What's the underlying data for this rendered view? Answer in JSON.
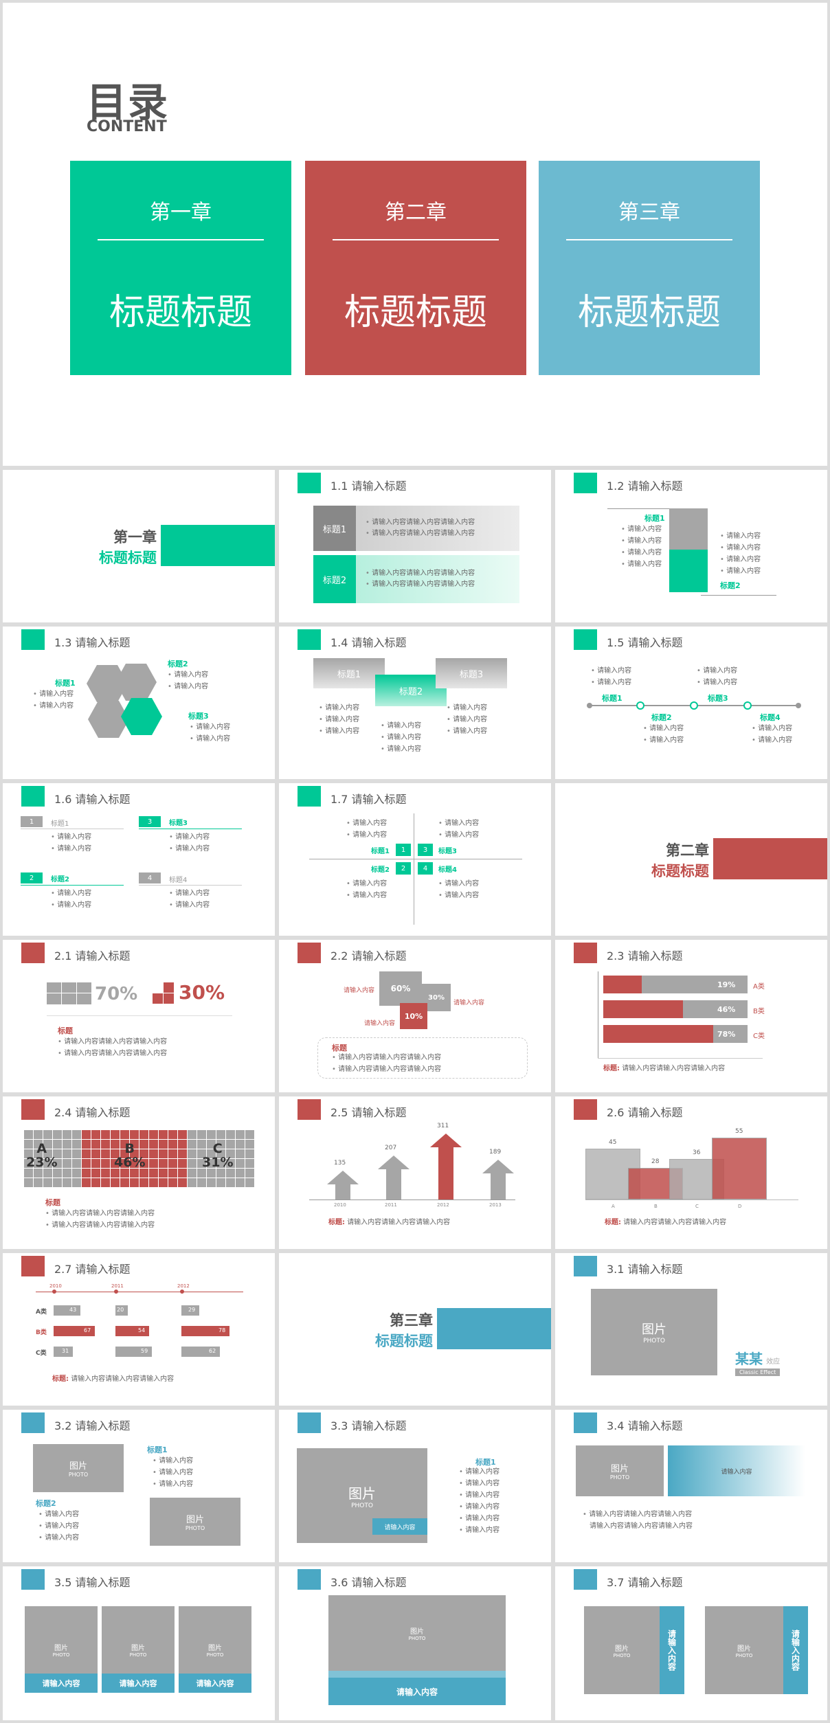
{
  "cover": {
    "title": "目录",
    "subtitle": "CONTENT",
    "chapters": [
      {
        "ch": "第一章",
        "t": "标题标题"
      },
      {
        "ch": "第二章",
        "t": "标题标题"
      },
      {
        "ch": "第三章",
        "t": "标题标题"
      }
    ]
  },
  "colors": {
    "green": "#00c896",
    "red": "#c0504d",
    "blue": "#4aa8c4",
    "gray": "#a6a6a6"
  },
  "common": {
    "input": "请输入内容",
    "input_long": "请输入内容请输入内容请输入内容",
    "biaoti": "标题",
    "biaoti_colon": "标题:",
    "pic": "图片",
    "photo": "PHOTO"
  },
  "sec1": {
    "chapter": "第一章",
    "title": "标题标题"
  },
  "sec2": {
    "chapter": "第二章",
    "title": "标题标题"
  },
  "sec3": {
    "chapter": "第三章",
    "title": "标题标题"
  },
  "s11": {
    "title": "1.1 请输入标题",
    "l1": "标题1",
    "l2": "标题2"
  },
  "s12": {
    "title": "1.2 请输入标题",
    "l1": "标题1",
    "l2": "标题2"
  },
  "s13": {
    "title": "1.3 请输入标题",
    "l1": "标题1",
    "l2": "标题2",
    "l3": "标题3"
  },
  "s14": {
    "title": "1.4 请输入标题",
    "l1": "标题1",
    "l2": "标题2",
    "l3": "标题3"
  },
  "s15": {
    "title": "1.5 请输入标题",
    "l1": "标题1",
    "l2": "标题2",
    "l3": "标题3",
    "l4": "标题4"
  },
  "s16": {
    "title": "1.6 请输入标题",
    "items": [
      {
        "n": "1",
        "l": "标题1"
      },
      {
        "n": "2",
        "l": "标题2"
      },
      {
        "n": "3",
        "l": "标题3"
      },
      {
        "n": "4",
        "l": "标题4"
      }
    ]
  },
  "s17": {
    "title": "1.7 请输入标题",
    "items": [
      {
        "n": "1",
        "l": "标题1"
      },
      {
        "n": "2",
        "l": "标题2"
      },
      {
        "n": "3",
        "l": "标题3"
      },
      {
        "n": "4",
        "l": "标题4"
      }
    ]
  },
  "s21": {
    "title": "2.1 请输入标题",
    "v1": "70%",
    "v2": "30%"
  },
  "s22": {
    "title": "2.2 请输入标题",
    "v1": "60%",
    "v2": "30%",
    "v3": "10%"
  },
  "s23": {
    "title": "2.3 请输入标题",
    "bars": [
      {
        "p": "19%",
        "l": "A类",
        "v": 0.19
      },
      {
        "p": "46%",
        "l": "B类",
        "v": 0.46
      },
      {
        "p": "78%",
        "l": "C类",
        "v": 0.78
      }
    ]
  },
  "s24": {
    "title": "2.4 请输入标题",
    "cells": [
      {
        "n": "A",
        "p": "23%"
      },
      {
        "n": "B",
        "p": "46%"
      },
      {
        "n": "C",
        "p": "31%"
      }
    ]
  },
  "s25": {
    "title": "2.5 请输入标题",
    "vals": [
      "135",
      "207",
      "311",
      "189"
    ],
    "years": [
      "2010",
      "2011",
      "2012",
      "2013"
    ]
  },
  "s26": {
    "title": "2.6 请输入标题",
    "vals": [
      "45",
      "28",
      "36",
      "55"
    ],
    "cats": [
      "A",
      "B",
      "C",
      "D"
    ]
  },
  "s27": {
    "title": "2.7 请输入标题",
    "years": [
      "2010",
      "2011",
      "2012"
    ],
    "rows": [
      {
        "l": "A类",
        "v": [
          "43",
          "20",
          "29"
        ]
      },
      {
        "l": "B类",
        "v": [
          "67",
          "54",
          "78"
        ]
      },
      {
        "l": "C类",
        "v": [
          "31",
          "59",
          "62"
        ]
      }
    ]
  },
  "s31": {
    "title": "3.1 请输入标题",
    "brand": "某某",
    "brand2": "效应",
    "brand3": "Classic Effect"
  },
  "s32": {
    "title": "3.2 请输入标题",
    "l1": "标题1",
    "l2": "标题2"
  },
  "s33": {
    "title": "3.3 请输入标题",
    "l1": "标题1"
  },
  "s34": {
    "title": "3.4 请输入标题"
  },
  "s35": {
    "title": "3.5 请输入标题"
  },
  "s36": {
    "title": "3.6 请输入标题"
  },
  "s37": {
    "title": "3.7 请输入标题"
  }
}
